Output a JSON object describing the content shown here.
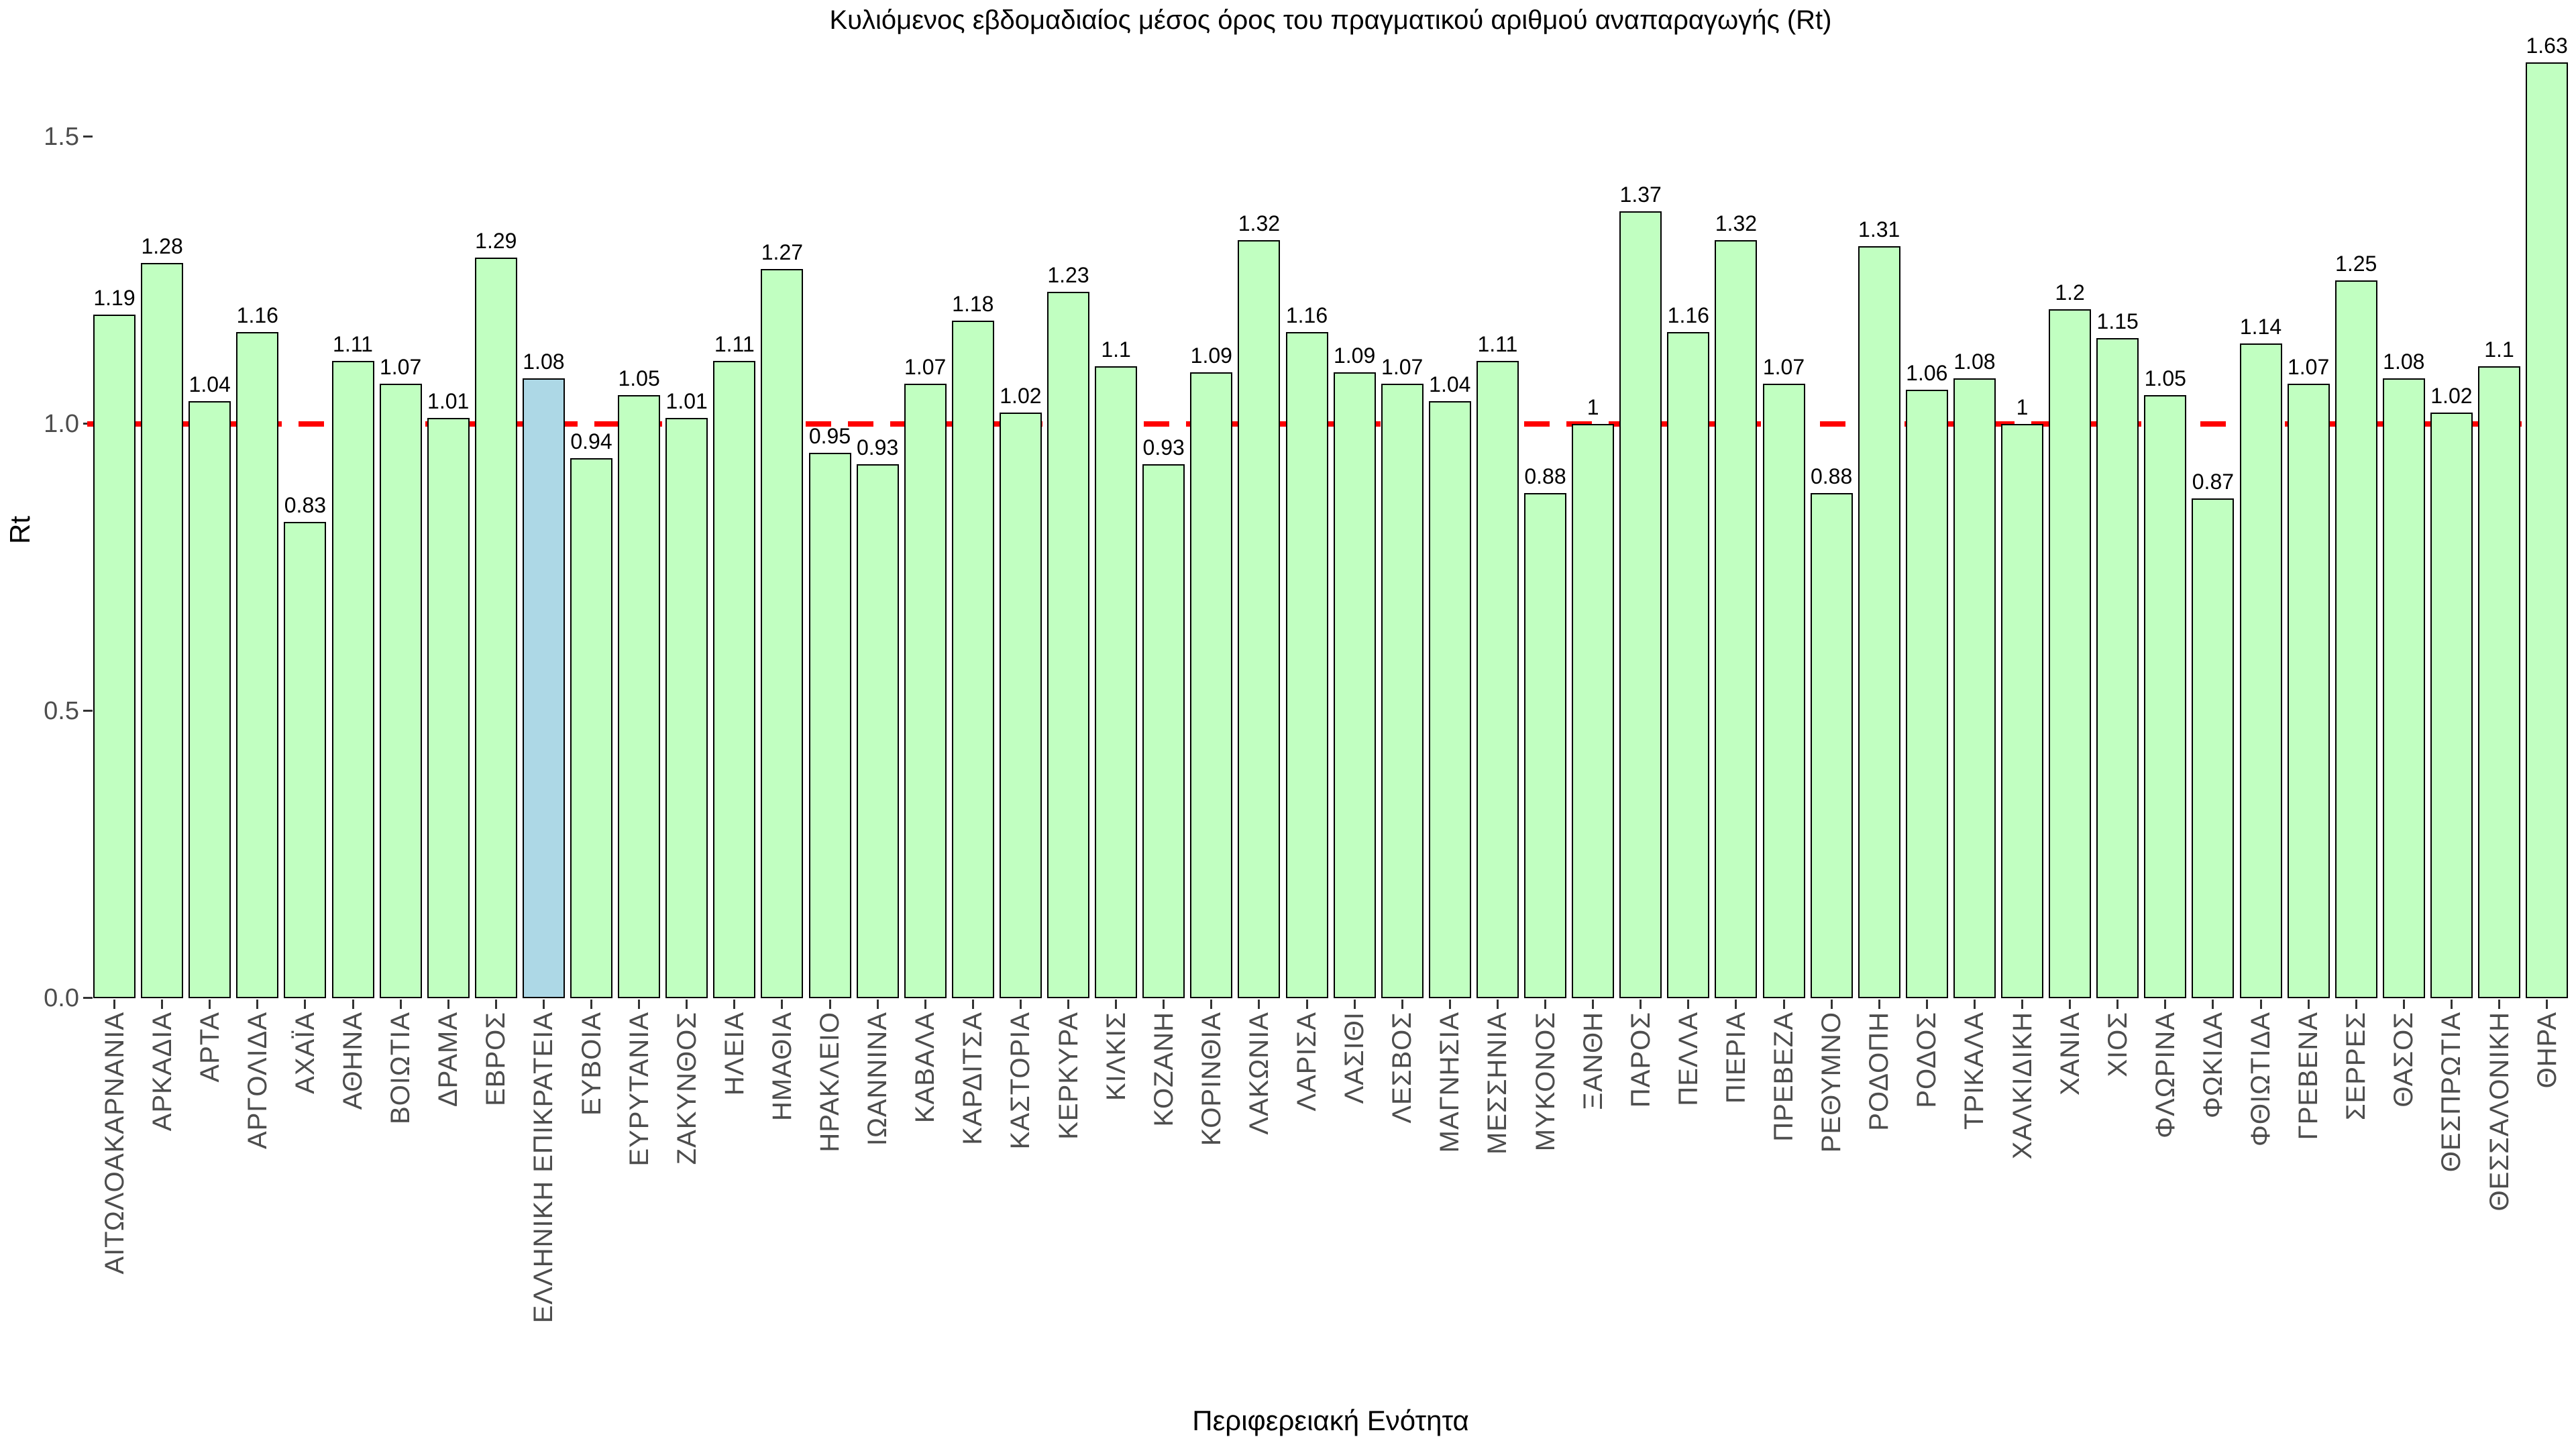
{
  "chart_data": {
    "type": "bar",
    "title": "Κυλιόμενος εβδομαδιαίος μέσος όρος του πραγματικού αριθμού αναπαραγωγής (Rt)",
    "xlabel": "Περιφερειακή Ενότητα",
    "ylabel": "Rt",
    "ylim": [
      0,
      1.7
    ],
    "yticks": [
      "0.0",
      "0.5",
      "1.0",
      "1.5"
    ],
    "grid": false,
    "legend": "none",
    "reference_line": {
      "value": 1.0,
      "style": "dashed",
      "color": "#FF0000"
    },
    "highlight_category": "ΕΛΛΗΝΙΚΗ ΕΠΙΚΡΑΤΕΙΑ",
    "colors": {
      "bar_fill": "#C1FFC1",
      "highlight_fill": "#ADD8E6",
      "bar_border": "#000000",
      "axis_text": "#4D4D4D",
      "title_text": "#000000"
    },
    "categories": [
      "ΑΙΤΩΛΟΑΚΑΡΝΑΝΙΑ",
      "ΑΡΚΑΔΙΑ",
      "ΑΡΤΑ",
      "ΑΡΓΟΛΙΔΑ",
      "ΑΧΑΪΑ",
      "ΑΘΗΝΑ",
      "ΒΟΙΩΤΙΑ",
      "ΔΡΑΜΑ",
      "ΕΒΡΟΣ",
      "ΕΛΛΗΝΙΚΗ ΕΠΙΚΡΑΤΕΙΑ",
      "ΕΥΒΟΙΑ",
      "ΕΥΡΥΤΑΝΙΑ",
      "ΖΑΚΥΝΘΟΣ",
      "ΗΛΕΙΑ",
      "ΗΜΑΘΙΑ",
      "ΗΡΑΚΛΕΙΟ",
      "ΙΩΑΝΝΙΝΑ",
      "ΚΑΒΑΛΑ",
      "ΚΑΡΔΙΤΣΑ",
      "ΚΑΣΤΟΡΙΑ",
      "ΚΕΡΚΥΡΑ",
      "ΚΙΛΚΙΣ",
      "ΚΟΖΑΝΗ",
      "ΚΟΡΙΝΘΙΑ",
      "ΛΑΚΩΝΙΑ",
      "ΛΑΡΙΣΑ",
      "ΛΑΣΙΘΙ",
      "ΛΕΣΒΟΣ",
      "ΜΑΓΝΗΣΙΑ",
      "ΜΕΣΣΗΝΙΑ",
      "ΜΥΚΟΝΟΣ",
      "ΞΑΝΘΗ",
      "ΠΑΡΟΣ",
      "ΠΕΛΛΑ",
      "ΠΙΕΡΙΑ",
      "ΠΡΕΒΕΖΑ",
      "ΡΕΘΥΜΝΟ",
      "ΡΟΔΟΠΗ",
      "ΡΟΔΟΣ",
      "ΤΡΙΚΑΛΑ",
      "ΧΑΛΚΙΔΙΚΗ",
      "ΧΑΝΙΑ",
      "ΧΙΟΣ",
      "ΦΛΩΡΙΝΑ",
      "ΦΩΚΙΔΑ",
      "ΦΘΙΩΤΙΔΑ",
      "ΓΡΕΒΕΝΑ",
      "ΣΕΡΡΕΣ",
      "ΘΑΣΟΣ",
      "ΘΕΣΠΡΩΤΙΑ",
      "ΘΕΣΣΑΛΟΝΙΚΗ",
      "ΘΗΡΑ"
    ],
    "values": [
      1.19,
      1.28,
      1.04,
      1.16,
      0.83,
      1.11,
      1.07,
      1.01,
      1.29,
      1.08,
      0.94,
      1.05,
      1.01,
      1.11,
      1.27,
      0.95,
      0.93,
      1.07,
      1.18,
      1.02,
      1.23,
      1.1,
      0.93,
      1.09,
      1.32,
      1.16,
      1.09,
      1.07,
      1.04,
      1.11,
      0.88,
      1,
      1.37,
      1.16,
      1.32,
      1.07,
      0.88,
      1.31,
      1.06,
      1.08,
      1,
      1.2,
      1.15,
      1.05,
      0.87,
      1.14,
      1.07,
      1.25,
      1.08,
      1.02,
      1.1,
      1.63
    ],
    "value_labels": [
      "1.19",
      "1.28",
      "1.04",
      "1.16",
      "0.83",
      "1.11",
      "1.07",
      "1.01",
      "1.29",
      "1.08",
      "0.94",
      "1.05",
      "1.01",
      "1.11",
      "1.27",
      "0.95",
      "0.93",
      "1.07",
      "1.18",
      "1.02",
      "1.23",
      "1.1",
      "0.93",
      "1.09",
      "1.32",
      "1.16",
      "1.09",
      "1.07",
      "1.04",
      "1.11",
      "0.88",
      "1",
      "1.37",
      "1.16",
      "1.32",
      "1.07",
      "0.88",
      "1.31",
      "1.06",
      "1.08",
      "1",
      "1.2",
      "1.15",
      "1.05",
      "0.87",
      "1.14",
      "1.07",
      "1.25",
      "1.08",
      "1.02",
      "1.1",
      "1.63"
    ]
  }
}
